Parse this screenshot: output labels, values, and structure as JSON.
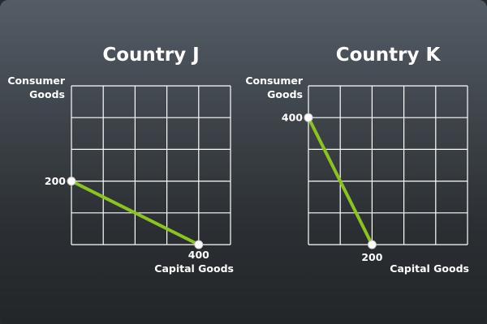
{
  "chart_data": [
    {
      "type": "line",
      "title": "Country J",
      "ylabel_lines": [
        "Consumer",
        "Goods"
      ],
      "xlabel": "Capital Goods",
      "xlim": [
        0,
        500
      ],
      "ylim": [
        0,
        500
      ],
      "grid": true,
      "points": [
        {
          "x": 0,
          "y": 200,
          "label": "200",
          "label_axis": "y"
        },
        {
          "x": 400,
          "y": 0,
          "label": "400",
          "label_axis": "x"
        }
      ]
    },
    {
      "type": "line",
      "title": "Country K",
      "ylabel_lines": [
        "Consumer",
        "Goods"
      ],
      "xlabel": "Capital Goods",
      "xlim": [
        0,
        500
      ],
      "ylim": [
        0,
        500
      ],
      "grid": true,
      "points": [
        {
          "x": 0,
          "y": 400,
          "label": "400",
          "label_axis": "y"
        },
        {
          "x": 200,
          "y": 0,
          "label": "200",
          "label_axis": "x"
        }
      ]
    }
  ]
}
